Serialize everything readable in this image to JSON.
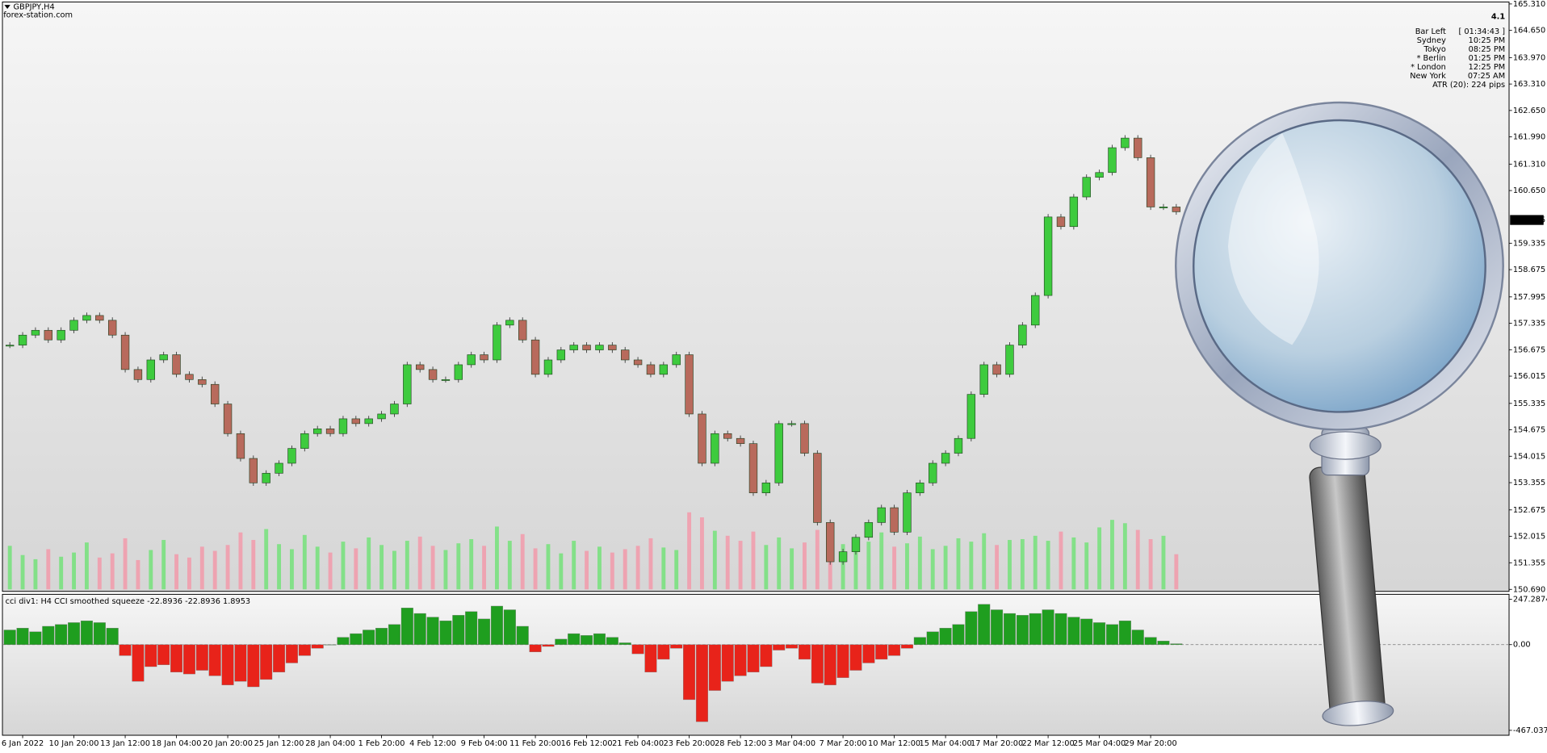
{
  "chart_data": [
    {
      "type": "candlestick",
      "title": "GBPJPY,H4",
      "subtitle": "forex-station.com",
      "close": [
        156.79,
        157.04,
        157.16,
        156.92,
        157.16,
        157.41,
        157.53,
        157.41,
        157.04,
        156.18,
        155.93,
        156.42,
        156.55,
        156.06,
        155.93,
        155.81,
        155.32,
        154.58,
        153.96,
        153.35,
        153.59,
        153.84,
        154.21,
        154.58,
        154.7,
        154.58,
        154.95,
        154.83,
        154.95,
        155.07,
        155.32,
        156.3,
        156.18,
        155.93,
        155.93,
        156.3,
        156.55,
        156.42,
        157.29,
        157.41,
        156.92,
        156.06,
        156.42,
        156.67,
        156.79,
        156.67,
        156.79,
        156.67,
        156.42,
        156.3,
        156.06,
        156.3,
        156.55,
        155.07,
        153.84,
        154.58,
        154.46,
        154.33,
        153.1,
        153.35,
        154.83,
        154.83,
        154.09,
        152.36,
        151.38,
        151.63,
        151.99,
        152.36,
        152.73,
        152.12,
        153.1,
        153.35,
        153.84,
        154.09,
        154.46,
        155.56,
        156.3,
        156.06,
        156.79,
        157.29,
        158.03,
        159.99,
        159.75,
        160.49,
        160.98,
        161.1,
        161.72,
        161.96,
        161.47,
        160.24,
        160.24,
        160.12
      ],
      "volume": [
        5200,
        4100,
        3600,
        4800,
        3900,
        4400,
        5600,
        3800,
        4300,
        6100,
        3500,
        4700,
        5900,
        4200,
        3800,
        5100,
        4600,
        5300,
        6800,
        5900,
        7200,
        5400,
        4800,
        6500,
        5100,
        4400,
        5700,
        4900,
        6200,
        5300,
        4600,
        5800,
        6300,
        5200,
        4700,
        5500,
        6000,
        5200,
        7500,
        5800,
        6600,
        4900,
        5400,
        4300,
        5800,
        4600,
        5100,
        4400,
        4800,
        5200,
        6100,
        5000,
        4700,
        9200,
        8600,
        7000,
        6400,
        5800,
        6900,
        5300,
        6200,
        4900,
        5600,
        7100,
        6500,
        5400,
        6000,
        5700,
        6800,
        5100,
        5500,
        6300,
        4800,
        5200,
        6100,
        5700,
        6700,
        5300,
        5900,
        6000,
        6400,
        5800,
        6900,
        6200,
        5600,
        7400,
        8300,
        7900,
        7100,
        6000,
        6400,
        4200
      ],
      "up_color": "#3ecb3e",
      "down_color": "#b86a5c",
      "volume_up_color": "#74e27a",
      "volume_down_color": "#f29aaa",
      "ylim": [
        150.69,
        165.31
      ],
      "yticks": [
        {
          "value": 165.31,
          "label": "165.310"
        },
        {
          "value": 164.65,
          "label": "164.650"
        },
        {
          "value": 163.97,
          "label": "163.970"
        },
        {
          "value": 163.31,
          "label": "163.310"
        },
        {
          "value": 162.65,
          "label": "162.650"
        },
        {
          "value": 161.99,
          "label": "161.990"
        },
        {
          "value": 161.31,
          "label": "161.310"
        },
        {
          "value": 160.65,
          "label": "160.650"
        },
        159.335,
        158.675,
        157.995,
        157.335,
        156.675,
        156.015,
        155.335,
        154.675,
        154.015,
        153.355,
        152.675,
        152.015,
        151.355,
        {
          "value": 150.69,
          "label": "150.690"
        }
      ],
      "current_price": 159.915,
      "info": {
        "version": "4.1",
        "rows": [
          {
            "label": "Bar Left",
            "value": "[ 01:34:43 ]"
          },
          {
            "label": "Sydney",
            "value": "10:25 PM"
          },
          {
            "label": "Tokyo",
            "value": "08:25 PM"
          },
          {
            "label": "* Berlin",
            "value": "01:25 PM",
            "highlight": true
          },
          {
            "label": "* London",
            "value": "12:25 PM",
            "highlight": true
          },
          {
            "label": "New York",
            "value": "07:25 AM"
          }
        ],
        "atr": "ATR (20): 224 pips",
        "color": "#8a8a8a",
        "highlight_color": "#ff0000"
      }
    },
    {
      "type": "histogram",
      "title": "cci div1: H4 CCI smoothed squeeze -22.8936 -22.8936 1.8953",
      "categories": [
        null,
        "6 Jan 2022",
        null,
        null,
        null,
        "10 Jan 20:00",
        null,
        null,
        null,
        "13 Jan 12:00",
        null,
        null,
        null,
        "18 Jan 04:00",
        null,
        null,
        null,
        "20 Jan 20:00",
        null,
        null,
        null,
        "25 Jan 12:00",
        null,
        null,
        null,
        "28 Jan 04:00",
        null,
        null,
        null,
        "1 Feb 20:00",
        null,
        null,
        null,
        "4 Feb 12:00",
        null,
        null,
        null,
        "9 Feb 04:00",
        null,
        null,
        null,
        "11 Feb 20:00",
        null,
        null,
        null,
        "16 Feb 12:00",
        null,
        null,
        null,
        "21 Feb 04:00",
        null,
        null,
        null,
        "23 Feb 20:00",
        null,
        null,
        null,
        "28 Feb 12:00",
        null,
        null,
        null,
        "3 Mar 04:00",
        null,
        null,
        null,
        "7 Mar 20:00",
        null,
        null,
        null,
        "10 Mar 12:00",
        null,
        null,
        null,
        "15 Mar 04:00",
        null,
        null,
        null,
        "17 Mar 20:00",
        null,
        null,
        null,
        "22 Mar 12:00",
        null,
        null,
        null,
        "25 Mar 04:00",
        null,
        null,
        null,
        "29 Mar 20:00",
        null,
        null
      ],
      "values": [
        80,
        90,
        70,
        100,
        110,
        120,
        130,
        120,
        90,
        -60,
        -200,
        -120,
        -110,
        -150,
        -160,
        -140,
        -170,
        -220,
        -200,
        -230,
        -190,
        -150,
        -100,
        -60,
        -20,
        0,
        40,
        60,
        80,
        90,
        110,
        200,
        170,
        150,
        130,
        160,
        180,
        140,
        210,
        190,
        100,
        -40,
        -10,
        30,
        60,
        50,
        60,
        40,
        10,
        -50,
        -150,
        -80,
        -20,
        -300,
        -420,
        -250,
        -200,
        -170,
        -150,
        -120,
        -30,
        -20,
        -80,
        -210,
        -220,
        -180,
        -140,
        -100,
        -80,
        -60,
        -20,
        40,
        70,
        90,
        110,
        180,
        220,
        190,
        170,
        160,
        170,
        190,
        170,
        150,
        140,
        120,
        110,
        130,
        80,
        40,
        20,
        5
      ],
      "positive_color": "#1f9e1f",
      "negative_color": "#e8231a",
      "ylim": [
        -467.0375,
        247.2874
      ],
      "yticks": [
        247.2874,
        {
          "value": 0,
          "label": "0.00"
        },
        -467.0375
      ],
      "zero_line": true
    }
  ]
}
